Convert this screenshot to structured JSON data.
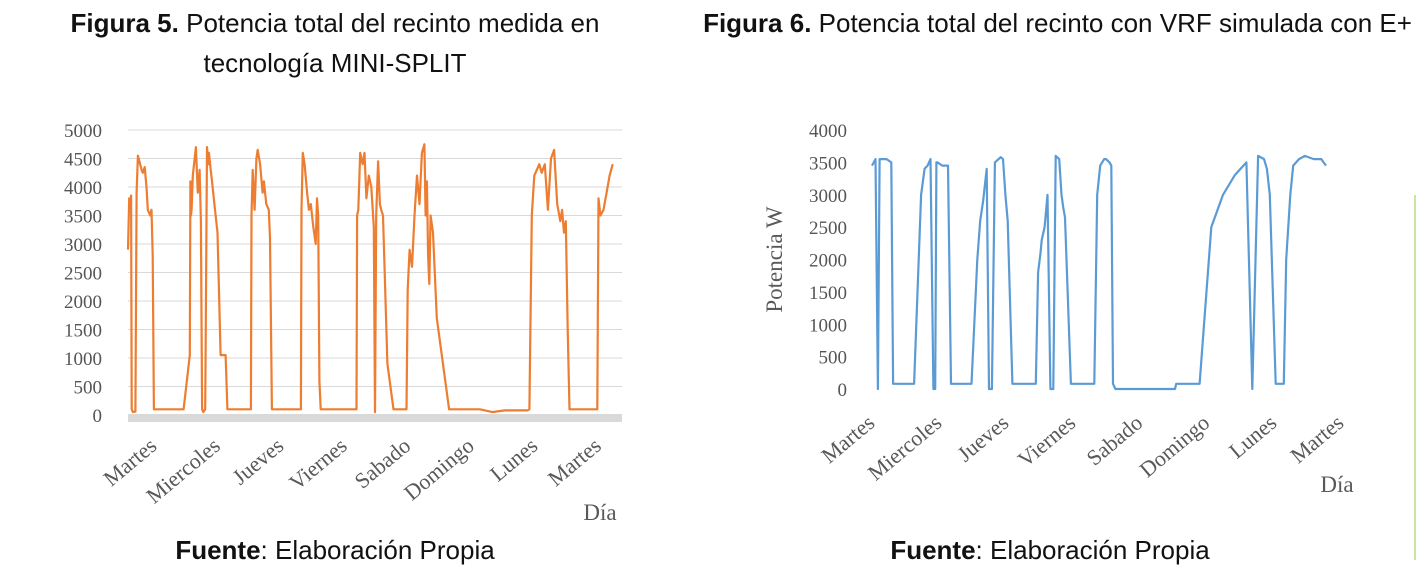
{
  "figure5": {
    "caption_bold": "Figura 5.",
    "caption_text": " Potencia total del recinto medida en tecnología MINI-SPLIT",
    "source_bold": "Fuente",
    "source_text": ": Elaboración Propia"
  },
  "figure6": {
    "caption_bold": "Figura 6.",
    "caption_text": " Potencia total del recinto con VRF simulada con E+",
    "source_bold": "Fuente",
    "source_text": ": Elaboración Propia"
  },
  "chart_data": [
    {
      "type": "line",
      "title": "",
      "xlabel": "Día",
      "ylabel": "",
      "ylim": [
        0,
        5000
      ],
      "yticks": [
        0,
        500,
        1000,
        1500,
        2000,
        2500,
        3000,
        3500,
        4000,
        4500,
        5000
      ],
      "categories": [
        "Martes",
        "Miercoles",
        "Jueves",
        "Viernes",
        "Sabado",
        "Domingo",
        "Lunes",
        "Martes"
      ],
      "grid": true,
      "color": "#ED7D31",
      "series": [
        {
          "x": [
            0.0,
            0.02,
            0.03,
            0.05,
            0.06,
            0.08,
            0.12,
            0.14,
            0.16,
            0.22,
            0.24,
            0.27,
            0.3,
            0.32,
            0.34,
            0.36,
            0.38,
            0.4,
            0.42,
            0.46,
            0.5,
            0.55,
            0.6,
            0.7,
            0.8,
            0.9,
            1.0,
            1.01,
            1.02,
            1.03,
            1.05,
            1.1,
            1.13,
            1.16,
            1.18,
            1.2,
            1.22,
            1.25,
            1.28,
            1.3,
            1.31,
            1.32,
            1.34,
            1.36,
            1.4,
            1.45,
            1.5,
            1.52,
            1.55,
            1.58,
            1.61,
            1.7,
            1.8,
            1.9,
            1.99,
            2.0,
            2.02,
            2.05,
            2.08,
            2.1,
            2.14,
            2.18,
            2.2,
            2.24,
            2.28,
            2.3,
            2.33,
            2.4,
            2.5,
            2.6,
            2.7,
            2.8,
            2.81,
            2.83,
            2.86,
            2.9,
            2.93,
            2.96,
            3.0,
            3.04,
            3.06,
            3.08,
            3.1,
            3.12,
            3.2,
            3.3,
            3.4,
            3.5,
            3.6,
            3.7,
            3.71,
            3.73,
            3.76,
            3.8,
            3.83,
            3.86,
            3.9,
            3.94,
            3.98,
            4.0,
            4.02,
            4.05,
            4.08,
            4.1,
            4.13,
            4.2,
            4.3,
            4.4,
            4.5,
            4.51,
            4.53,
            4.56,
            4.6,
            4.64,
            4.68,
            4.72,
            4.76,
            4.8,
            4.82,
            4.84,
            4.86,
            4.88,
            4.9,
            4.94,
            5.0,
            5.2,
            5.4,
            5.6,
            5.7,
            5.9,
            6.1,
            6.3,
            6.45,
            6.47,
            6.5,
            6.54,
            6.58,
            6.62,
            6.66,
            6.7,
            6.75,
            6.8,
            6.85,
            6.9,
            6.95,
            7.0,
            7.03,
            7.06,
            7.09,
            7.12,
            7.15,
            7.3,
            7.45,
            7.6,
            7.62,
            7.65,
            7.7,
            7.75,
            7.8,
            7.85
          ],
          "y": [
            2900,
            3800,
            3700,
            3850,
            100,
            50,
            60,
            3900,
            4550,
            4300,
            4250,
            4350,
            4000,
            3600,
            3550,
            3500,
            3600,
            2800,
            100,
            100,
            100,
            100,
            100,
            100,
            100,
            100,
            1050,
            4100,
            3500,
            3600,
            4200,
            4700,
            3900,
            4300,
            3400,
            100,
            50,
            100,
            4700,
            4400,
            4600,
            4500,
            4300,
            4100,
            3700,
            3200,
            1050,
            1050,
            1050,
            1050,
            100,
            100,
            100,
            100,
            100,
            3500,
            4300,
            3600,
            4500,
            4650,
            4400,
            3900,
            4100,
            3700,
            3600,
            3100,
            100,
            100,
            100,
            100,
            100,
            100,
            3600,
            4600,
            4400,
            3900,
            3600,
            3700,
            3300,
            3000,
            3800,
            3500,
            600,
            100,
            100,
            100,
            100,
            100,
            100,
            100,
            3500,
            3600,
            4600,
            4400,
            4600,
            3800,
            4200,
            4000,
            3300,
            50,
            3500,
            4450,
            3700,
            3600,
            3500,
            900,
            100,
            100,
            100,
            100,
            2200,
            2900,
            2600,
            3500,
            4200,
            3700,
            4600,
            4750,
            3500,
            4100,
            2800,
            2300,
            3500,
            3200,
            1700,
            100,
            100,
            100,
            100,
            50,
            80,
            80,
            80,
            80,
            100,
            3500,
            4200,
            4300,
            4400,
            4250,
            4400,
            3600,
            4500,
            4650,
            3700,
            3400,
            3600,
            3200,
            3400,
            1500,
            100,
            100,
            100,
            100,
            3800,
            3500,
            3600,
            3900,
            4200,
            4400
          ]
        }
      ]
    },
    {
      "type": "line",
      "title": "",
      "xlabel": "Día",
      "ylabel": "Potencia W",
      "ylim": [
        0,
        4000
      ],
      "yticks": [
        0,
        500,
        1000,
        1500,
        2000,
        2500,
        3000,
        3500,
        4000
      ],
      "categories": [
        "Martes",
        "Miercoles",
        "Jueves",
        "Viernes",
        "Sabado",
        "Domingo",
        "Lunes",
        "Martes"
      ],
      "grid": false,
      "color": "#5B9BD5",
      "series": [
        {
          "x": [
            0.0,
            0.06,
            0.1,
            0.13,
            0.16,
            0.25,
            0.33,
            0.36,
            0.4,
            0.44,
            0.52,
            0.72,
            0.84,
            0.9,
            0.95,
            1.0,
            1.05,
            1.08,
            1.1,
            1.12,
            1.2,
            1.3,
            1.35,
            1.4,
            1.6,
            1.7,
            1.8,
            1.85,
            1.9,
            1.96,
            2.0,
            2.05,
            2.1,
            2.2,
            2.24,
            2.28,
            2.32,
            2.4,
            2.6,
            2.8,
            2.84,
            2.88,
            2.9,
            2.95,
            3.0,
            3.05,
            3.1,
            3.14,
            3.2,
            3.24,
            3.27,
            3.3,
            3.4,
            3.6,
            3.8,
            3.85,
            3.9,
            3.97,
            4.0,
            4.06,
            4.09,
            4.12,
            4.16,
            4.2,
            4.4,
            4.6,
            4.75,
            4.8,
            4.86,
            4.92,
            5.0,
            5.1,
            5.18,
            5.2,
            5.4,
            5.6,
            5.8,
            6.0,
            6.2,
            6.4,
            6.5,
            6.6,
            6.7,
            6.75,
            6.8,
            6.9,
            6.95,
            7.0,
            7.04,
            7.08,
            7.15,
            7.2,
            7.25,
            7.3,
            7.4,
            7.55,
            7.64,
            7.68,
            7.72,
            7.76
          ],
          "y": [
            3450,
            3550,
            0,
            3550,
            3550,
            3550,
            3500,
            80,
            80,
            80,
            80,
            80,
            3000,
            3400,
            3450,
            3550,
            0,
            0,
            3500,
            3500,
            3450,
            3450,
            80,
            80,
            80,
            80,
            2000,
            2600,
            2900,
            3400,
            0,
            0,
            3500,
            3580,
            3550,
            3000,
            2600,
            80,
            80,
            80,
            1800,
            2100,
            2300,
            2500,
            3000,
            0,
            0,
            3600,
            3550,
            3000,
            2800,
            2650,
            80,
            80,
            80,
            3000,
            3450,
            3550,
            3550,
            3500,
            3450,
            80,
            0,
            0,
            0,
            0,
            0,
            0,
            0,
            0,
            0,
            0,
            0,
            80,
            80,
            80,
            2500,
            3000,
            3300,
            3500,
            0,
            3600,
            3550,
            3400,
            3000,
            80,
            80,
            80,
            80,
            2000,
            3000,
            3450,
            3500,
            3550,
            3600,
            3550,
            3550,
            3550,
            3500,
            3450
          ]
        }
      ]
    }
  ]
}
